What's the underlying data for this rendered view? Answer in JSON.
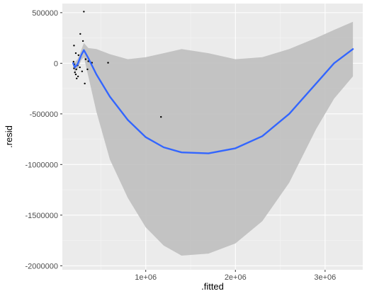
{
  "chart_data": {
    "type": "scatter",
    "xlabel": ".fitted",
    "ylabel": ".resid",
    "xlim": [
      70000,
      3420000
    ],
    "ylim": [
      -2040000,
      590000
    ],
    "x_ticks": [
      {
        "value": 1000000,
        "label": "1e+06"
      },
      {
        "value": 2000000,
        "label": "2e+06"
      },
      {
        "value": 3000000,
        "label": "3e+06"
      }
    ],
    "y_ticks": [
      {
        "value": 500000,
        "label": "500000"
      },
      {
        "value": 0,
        "label": "0"
      },
      {
        "value": -500000,
        "label": "-500000"
      },
      {
        "value": -1000000,
        "label": "-1000000"
      },
      {
        "value": -1500000,
        "label": "-1500000"
      },
      {
        "value": -2000000,
        "label": "-2000000"
      }
    ],
    "grid": true,
    "background": "#ebebeb",
    "points": [
      {
        "x": 310000,
        "y": 510000
      },
      {
        "x": 270000,
        "y": 290000
      },
      {
        "x": 300000,
        "y": 220000
      },
      {
        "x": 200000,
        "y": 175000
      },
      {
        "x": 220000,
        "y": 100000
      },
      {
        "x": 250000,
        "y": 80000
      },
      {
        "x": 330000,
        "y": 40000
      },
      {
        "x": 360000,
        "y": 20000
      },
      {
        "x": 400000,
        "y": 5000
      },
      {
        "x": 580000,
        "y": 5000
      },
      {
        "x": 195000,
        "y": 15000
      },
      {
        "x": 205000,
        "y": -10000
      },
      {
        "x": 215000,
        "y": -30000
      },
      {
        "x": 225000,
        "y": -60000
      },
      {
        "x": 210000,
        "y": -90000
      },
      {
        "x": 220000,
        "y": -110000
      },
      {
        "x": 245000,
        "y": -130000
      },
      {
        "x": 230000,
        "y": -150000
      },
      {
        "x": 265000,
        "y": -40000
      },
      {
        "x": 290000,
        "y": -80000
      },
      {
        "x": 320000,
        "y": -200000
      },
      {
        "x": 350000,
        "y": -60000
      },
      {
        "x": 200000,
        "y": -50000
      },
      {
        "x": 240000,
        "y": -20000
      },
      {
        "x": 1170000,
        "y": -530000
      }
    ],
    "smooth": {
      "method": "loess",
      "color": "#3366ff",
      "band_color": "#bfbfbf",
      "x": [
        190000,
        210000,
        240000,
        280000,
        310000,
        360000,
        450000,
        600000,
        800000,
        1000000,
        1200000,
        1400000,
        1700000,
        2000000,
        2300000,
        2600000,
        2900000,
        3100000,
        3310000
      ],
      "y": [
        0,
        -40000,
        -10000,
        80000,
        130000,
        50000,
        -110000,
        -330000,
        -560000,
        -730000,
        -830000,
        -880000,
        -890000,
        -840000,
        -720000,
        -500000,
        -200000,
        0,
        140000
      ],
      "lower": [
        -30000,
        -90000,
        -60000,
        30000,
        60000,
        -130000,
        -480000,
        -950000,
        -1330000,
        -1620000,
        -1800000,
        -1900000,
        -1880000,
        -1780000,
        -1560000,
        -1180000,
        -650000,
        -350000,
        -130000
      ],
      "upper": [
        30000,
        10000,
        40000,
        130000,
        200000,
        150000,
        140000,
        90000,
        40000,
        60000,
        100000,
        140000,
        100000,
        40000,
        60000,
        140000,
        250000,
        330000,
        410000
      ]
    }
  }
}
